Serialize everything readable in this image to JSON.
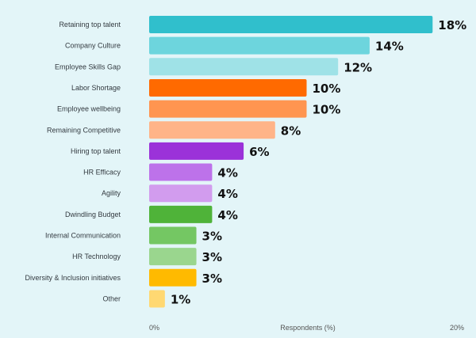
{
  "chart_data": {
    "type": "bar",
    "orientation": "horizontal",
    "categories": [
      "Retaining top talent",
      "Company Culture",
      "Employee Skills Gap",
      "Labor Shortage",
      "Employee wellbeing",
      "Remaining Competitive",
      "Hiring top talent",
      "HR Efficacy",
      "Agility",
      "Dwindling Budget",
      "Internal Communication",
      "HR Technology",
      "Diversity & Inclusion initiatives",
      "Other"
    ],
    "values": [
      18,
      14,
      12,
      10,
      10,
      8,
      6,
      4,
      4,
      4,
      3,
      3,
      3,
      1
    ],
    "data_labels": [
      "18%",
      "14%",
      "12%",
      "10%",
      "10%",
      "8%",
      "6%",
      "4%",
      "4%",
      "4%",
      "3%",
      "3%",
      "3%",
      "1%"
    ],
    "colors": [
      "#30bfcc",
      "#6dd5dd",
      "#9fe2e7",
      "#ff6a00",
      "#ff9550",
      "#ffb488",
      "#9b32d9",
      "#bd72ea",
      "#d29cee",
      "#4fb339",
      "#74c763",
      "#9ad68e",
      "#ffba00",
      "#ffd872"
    ],
    "xlabel": "Respondents (%)",
    "xlim": [
      0,
      20
    ],
    "x_ticks": [
      "0%",
      "20%"
    ],
    "grid": false,
    "legend": "none"
  }
}
